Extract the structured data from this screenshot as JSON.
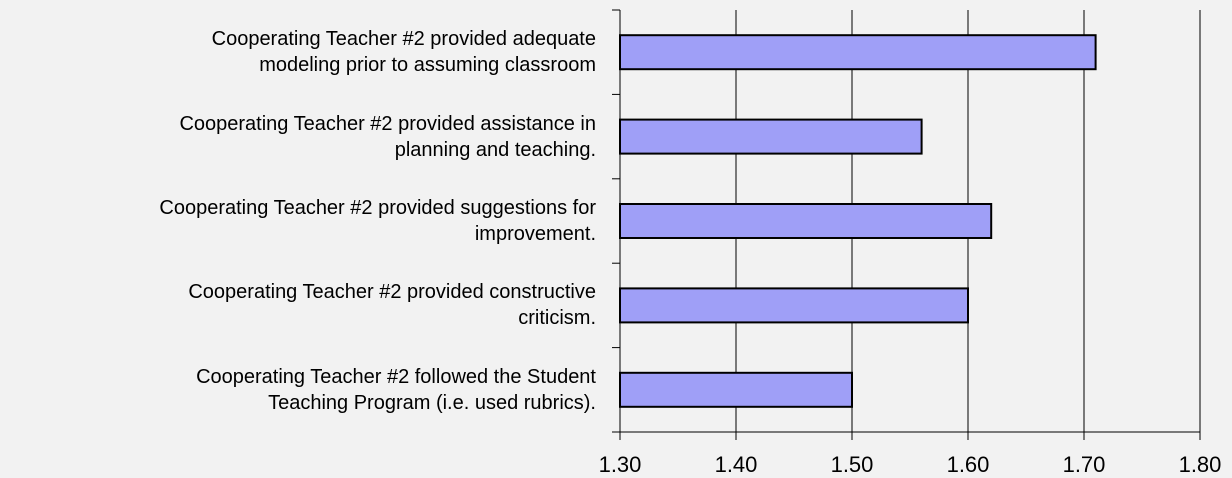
{
  "chart_data": {
    "type": "barh",
    "categories": [
      "Cooperating Teacher #2 provided adequate\nmodeling prior to assuming classroom",
      "Cooperating Teacher #2 provided assistance in\nplanning and teaching.",
      "Cooperating Teacher #2 provided suggestions for\nimprovement.",
      "Cooperating Teacher #2 provided constructive\ncriticism.",
      "Cooperating Teacher #2 followed the Student\nTeaching Program (i.e. used rubrics)."
    ],
    "values": [
      1.71,
      1.56,
      1.62,
      1.6,
      1.5
    ],
    "color": "#9f9ff7",
    "xlim": [
      1.3,
      1.8
    ],
    "xticks": [
      {
        "value": 1.3,
        "label": "1.30"
      },
      {
        "value": 1.4,
        "label": "1.40"
      },
      {
        "value": 1.5,
        "label": "1.50"
      },
      {
        "value": 1.6,
        "label": "1.60"
      },
      {
        "value": 1.7,
        "label": "1.70"
      },
      {
        "value": 1.8,
        "label": "1.80"
      }
    ],
    "grid": true
  }
}
